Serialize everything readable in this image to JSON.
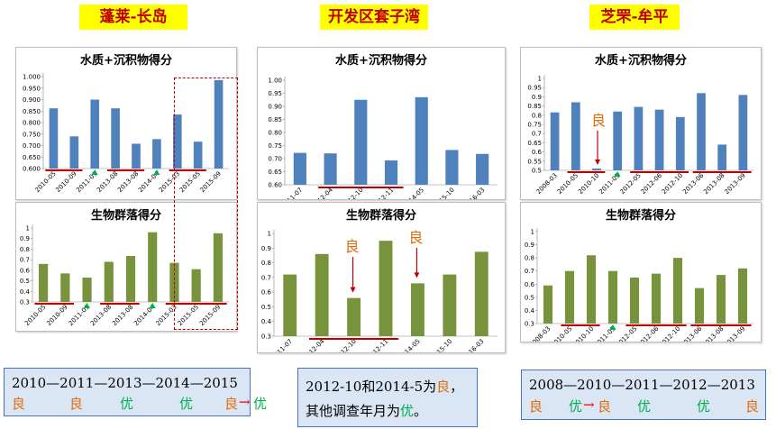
{
  "regions": [
    {
      "title": "蓬莱-长岛",
      "wq_title": "水质+沉积物得分",
      "bio_title": "生物群落得分",
      "summary": {
        "line1": "2010—2011—2013—2014—2015",
        "line2": [
          {
            "text": "良",
            "color": "#e36c0a",
            "x": 0
          },
          {
            "text": "良",
            "color": "#e36c0a",
            "x": 64
          },
          {
            "text": "优",
            "color": "#00b050",
            "x": 120
          },
          {
            "text": "优",
            "color": "#00b050",
            "x": 186
          },
          {
            "text": "良",
            "color": "#e36c0a",
            "x": 236
          },
          {
            "text": "→",
            "color": "#ff0000",
            "x": 252
          },
          {
            "text": "优",
            "color": "#00b050",
            "x": 268
          }
        ]
      }
    },
    {
      "title": "开发区套子湾",
      "wq_title": "水质+沉积物得分",
      "bio_title": "生物群落得分",
      "summary": {
        "line1": [
          {
            "text": "2012-10和2014-5为",
            "color": "#000000"
          },
          {
            "text": "良",
            "color": "#e36c0a"
          },
          {
            "text": "，",
            "color": "#000000"
          }
        ],
        "line2": [
          {
            "text": "其他调查年月为",
            "color": "#000000"
          },
          {
            "text": "优",
            "color": "#00b050"
          },
          {
            "text": "。",
            "color": "#000000"
          }
        ]
      }
    },
    {
      "title": "芝罘-牟平",
      "wq_title": "水质+沉积物得分",
      "bio_title": "生物群落得分",
      "summary": {
        "line1": "2008—2010—2011—2012—2013",
        "line2": [
          {
            "text": "良",
            "color": "#e36c0a",
            "x": 0
          },
          {
            "text": "优",
            "color": "#00b050",
            "x": 44
          },
          {
            "text": "→",
            "color": "#ff0000",
            "x": 60
          },
          {
            "text": "良",
            "color": "#e36c0a",
            "x": 76
          },
          {
            "text": "优",
            "color": "#00b050",
            "x": 120
          },
          {
            "text": "优",
            "color": "#00b050",
            "x": 186
          },
          {
            "text": "良",
            "color": "#e36c0a",
            "x": 240
          }
        ]
      }
    }
  ],
  "annotations": {
    "liang": "良"
  },
  "colors": {
    "wq_bar": "#4f81bd",
    "bio_bar": "#77933c",
    "underline": "#c00000",
    "up_marker": "#00b050",
    "arrow": "#c00000",
    "liang": "#e36c0a"
  },
  "chart_data": [
    {
      "type": "bar",
      "title": "水质+沉积物得分",
      "categories": [
        "2010-05",
        "2010-09",
        "2011-09",
        "2013-08",
        "2013-08",
        "2014-04",
        "2015-03",
        "2015-05",
        "2015-09"
      ],
      "values": [
        0.862,
        0.74,
        0.9,
        0.862,
        0.708,
        0.728,
        0.835,
        0.717,
        0.985
      ],
      "ylim": [
        0.6,
        1.0
      ],
      "yticks": [
        "0.600",
        "0.650",
        "0.700",
        "0.750",
        "0.800",
        "0.850",
        "0.900",
        "0.950",
        "1.000"
      ],
      "ytick_values": [
        0.6,
        0.65,
        0.7,
        0.75,
        0.8,
        0.85,
        0.9,
        0.95,
        1.0
      ]
    },
    {
      "type": "bar",
      "title": "生物群落得分",
      "categories": [
        "2010-05",
        "2010-09",
        "2011-09",
        "2013-08",
        "2013-08",
        "2014-04",
        "2015-03",
        "2015-05",
        "2015-09"
      ],
      "values": [
        0.66,
        0.57,
        0.53,
        0.68,
        0.735,
        0.96,
        0.67,
        0.61,
        0.95
      ],
      "ylim": [
        0.3,
        1.0
      ],
      "yticks": [
        "0.3",
        "0.4",
        "0.5",
        "0.6",
        "0.7",
        "0.8",
        "0.9",
        "1"
      ],
      "ytick_values": [
        0.3,
        0.4,
        0.5,
        0.6,
        0.7,
        0.8,
        0.9,
        1.0
      ]
    },
    {
      "type": "bar",
      "title": "水质+沉积物得分",
      "categories": [
        "2011-07",
        "2012-04",
        "2012-10",
        "2012-11",
        "2014-05",
        "2015-10",
        "2016-03"
      ],
      "values": [
        0.722,
        0.72,
        0.925,
        0.693,
        0.935,
        0.733,
        0.718
      ],
      "ylim": [
        0.6,
        1.0
      ],
      "yticks": [
        "0.60",
        "0.65",
        "0.70",
        "0.75",
        "0.80",
        "0.85",
        "0.90",
        "0.95",
        "1.00"
      ],
      "ytick_values": [
        0.6,
        0.65,
        0.7,
        0.75,
        0.8,
        0.85,
        0.9,
        0.95,
        1.0
      ]
    },
    {
      "type": "bar",
      "title": "生物群落得分",
      "categories": [
        "2011-07",
        "2012-04",
        "2012-10",
        "2012-11",
        "2014-05",
        "2015-10",
        "2016-03"
      ],
      "values": [
        0.72,
        0.86,
        0.56,
        0.95,
        0.66,
        0.72,
        0.875
      ],
      "ylim": [
        0.3,
        1.0
      ],
      "yticks": [
        "0.3",
        "0.4",
        "0.5",
        "0.6",
        "0.7",
        "0.8",
        "0.9",
        "1"
      ],
      "ytick_values": [
        0.3,
        0.4,
        0.5,
        0.6,
        0.7,
        0.8,
        0.9,
        1.0
      ]
    },
    {
      "type": "bar",
      "title": "水质+沉积物得分",
      "categories": [
        "2008-03",
        "2010-05",
        "2010-10",
        "2011-05",
        "2012-05",
        "2012-06",
        "2012-10",
        "2013-06",
        "2013-08",
        "2013-09"
      ],
      "values": [
        0.815,
        0.87,
        0.51,
        0.82,
        0.845,
        0.83,
        0.79,
        0.92,
        0.64,
        0.91
      ],
      "ylim": [
        0.5,
        1.0
      ],
      "yticks": [
        "0.5",
        "0.55",
        "0.6",
        "0.65",
        "0.7",
        "0.75",
        "0.8",
        "0.85",
        "0.9",
        "0.95",
        "1"
      ],
      "ytick_values": [
        0.5,
        0.55,
        0.6,
        0.65,
        0.7,
        0.75,
        0.8,
        0.85,
        0.9,
        0.95,
        1.0
      ]
    },
    {
      "type": "bar",
      "title": "生物群落得分",
      "categories": [
        "2008-03",
        "2010-05",
        "2010-10",
        "2011-05",
        "2012-05",
        "2012-06",
        "2012-10",
        "2013-06",
        "2013-08",
        "2013-09"
      ],
      "values": [
        0.59,
        0.7,
        0.82,
        0.7,
        0.65,
        0.68,
        0.8,
        0.57,
        0.67,
        0.72
      ],
      "ylim": [
        0.3,
        1.0
      ],
      "yticks": [
        "0.3",
        "0.4",
        "0.5",
        "0.6",
        "0.7",
        "0.8",
        "0.9",
        "1"
      ],
      "ytick_values": [
        0.3,
        0.4,
        0.5,
        0.6,
        0.7,
        0.8,
        0.9,
        1.0
      ]
    }
  ]
}
